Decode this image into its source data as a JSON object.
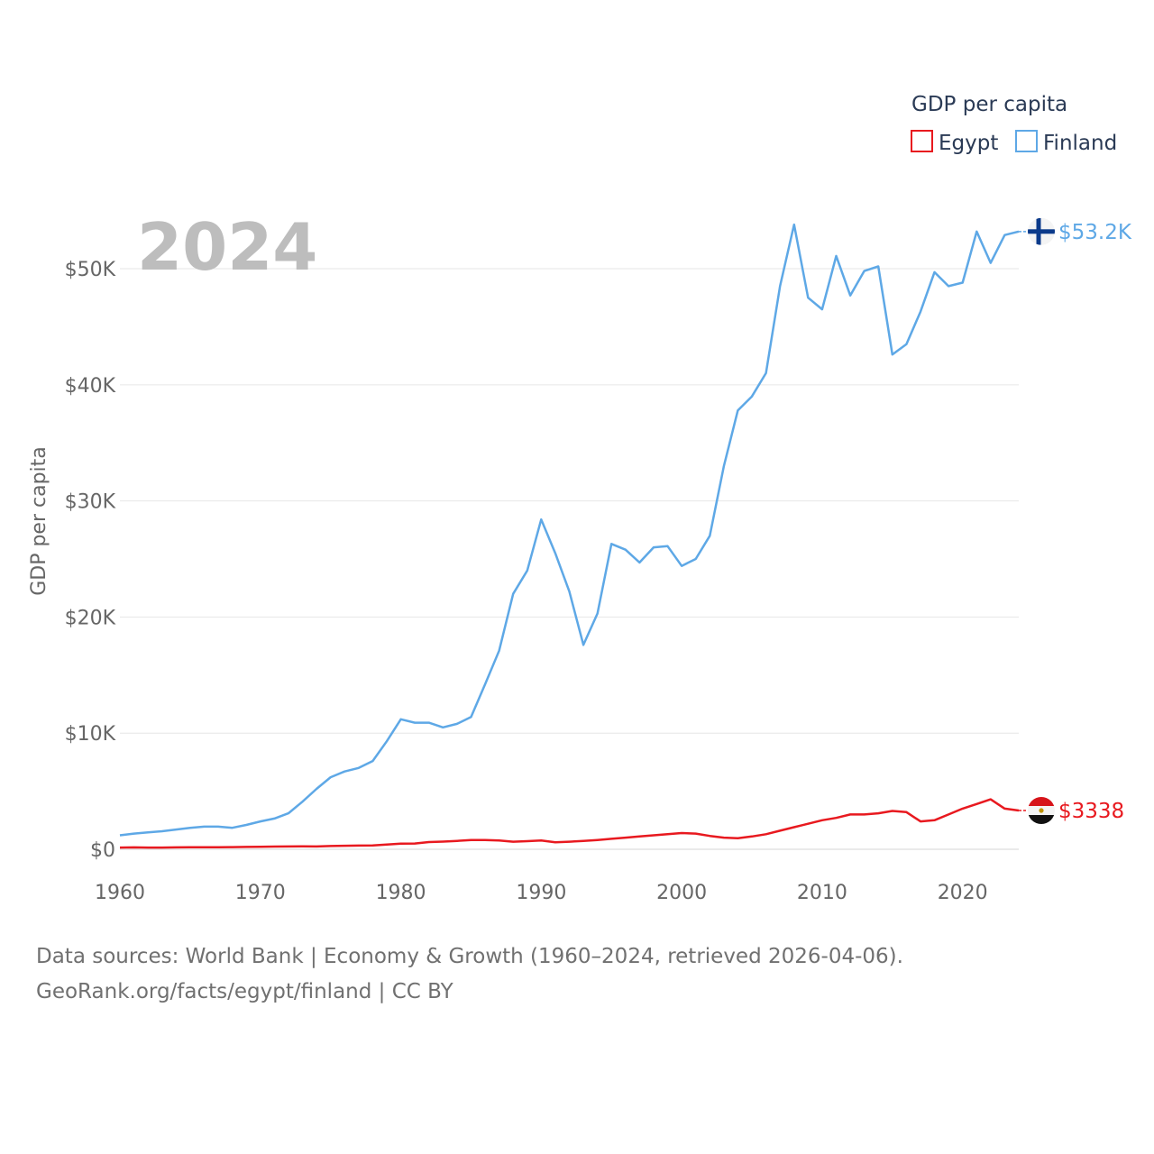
{
  "chart_data": {
    "type": "line",
    "year_label": "2024",
    "ylabel": "GDP per capita",
    "legend": {
      "title": "GDP per capita",
      "position": "top-right"
    },
    "ylim": [
      0,
      58000
    ],
    "xlim": [
      1960,
      2024
    ],
    "y_ticks": [
      0,
      10000,
      20000,
      30000,
      40000,
      50000
    ],
    "y_tick_labels": [
      "$0",
      "$10K",
      "$20K",
      "$30K",
      "$40K",
      "$50K"
    ],
    "x_ticks": [
      1960,
      1970,
      1980,
      1990,
      2000,
      2010,
      2020
    ],
    "x_tick_labels": [
      "1960",
      "1970",
      "1980",
      "1990",
      "2000",
      "2010",
      "2020"
    ],
    "x": [
      1960,
      1961,
      1962,
      1963,
      1964,
      1965,
      1966,
      1967,
      1968,
      1969,
      1970,
      1971,
      1972,
      1973,
      1974,
      1975,
      1976,
      1977,
      1978,
      1979,
      1980,
      1981,
      1982,
      1983,
      1984,
      1985,
      1986,
      1987,
      1988,
      1989,
      1990,
      1991,
      1992,
      1993,
      1994,
      1995,
      1996,
      1997,
      1998,
      1999,
      2000,
      2001,
      2002,
      2003,
      2004,
      2005,
      2006,
      2007,
      2008,
      2009,
      2010,
      2011,
      2012,
      2013,
      2014,
      2015,
      2016,
      2017,
      2018,
      2019,
      2020,
      2021,
      2022,
      2023,
      2024
    ],
    "series": [
      {
        "name": "Egypt",
        "color": "#e8191f",
        "end_label": "$3338",
        "flag": "egypt-flag",
        "values": [
          150,
          160,
          150,
          150,
          160,
          170,
          180,
          180,
          190,
          200,
          220,
          230,
          240,
          250,
          240,
          280,
          300,
          320,
          330,
          400,
          480,
          500,
          620,
          660,
          720,
          800,
          800,
          760,
          650,
          700,
          750,
          600,
          650,
          720,
          800,
          900,
          1000,
          1100,
          1200,
          1300,
          1400,
          1350,
          1150,
          1000,
          950,
          1100,
          1300,
          1600,
          1900,
          2200,
          2500,
          2700,
          3000,
          3000,
          3100,
          3300,
          3200,
          2400,
          2500,
          3000,
          3500,
          3900,
          4300,
          3500,
          3338
        ]
      },
      {
        "name": "Finland",
        "color": "#5ea8e6",
        "end_label": "$53.2K",
        "flag": "finland-flag",
        "values": [
          1200,
          1350,
          1450,
          1550,
          1700,
          1850,
          1950,
          1950,
          1850,
          2100,
          2400,
          2650,
          3100,
          4100,
          5200,
          6200,
          6700,
          7000,
          7600,
          9300,
          11200,
          10900,
          10900,
          10500,
          10800,
          11400,
          14200,
          17100,
          22000,
          24000,
          28400,
          25500,
          22200,
          17600,
          20300,
          26300,
          25800,
          24700,
          26000,
          26100,
          24400,
          25000,
          27000,
          33000,
          37800,
          39000,
          41000,
          48500,
          53800,
          47500,
          46500,
          51100,
          47700,
          49800,
          50200,
          42600,
          43500,
          46300,
          49700,
          48500,
          48800,
          53200,
          50500,
          52900,
          53200
        ]
      }
    ]
  },
  "footer": {
    "line1": "Data sources: World Bank | Economy & Growth (1960–2024, retrieved 2026-04-06).",
    "line2": "GeoRank.org/facts/egypt/finland | CC BY"
  }
}
